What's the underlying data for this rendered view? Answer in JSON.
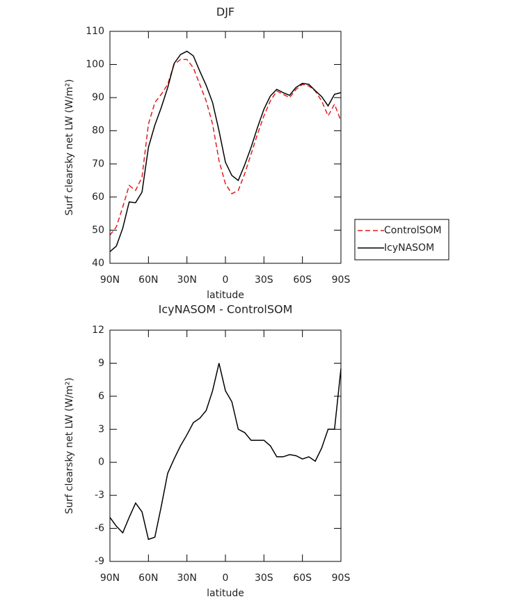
{
  "chart_data": [
    {
      "type": "line",
      "title": "DJF",
      "xlabel": "latitude",
      "ylabel": "Surf clearsky net LW (W/m²)",
      "x": [
        90,
        85,
        80,
        75,
        70,
        65,
        60,
        55,
        50,
        45,
        40,
        35,
        30,
        25,
        20,
        15,
        10,
        5,
        0,
        -5,
        -10,
        -15,
        -20,
        -25,
        -30,
        -35,
        -40,
        -45,
        -50,
        -55,
        -60,
        -65,
        -70,
        -75,
        -80,
        -85,
        -90
      ],
      "xlim": [
        90,
        -90
      ],
      "xticks": [
        {
          "value": 90,
          "label": "90N"
        },
        {
          "value": 60,
          "label": "60N"
        },
        {
          "value": 30,
          "label": "30N"
        },
        0,
        {
          "value": -30,
          "label": "30S"
        },
        {
          "value": -60,
          "label": "60S"
        },
        {
          "value": -90,
          "label": "90S"
        }
      ],
      "ylim": [
        40,
        110
      ],
      "yticks": [
        40,
        50,
        60,
        70,
        80,
        90,
        100,
        110
      ],
      "legend": "right",
      "series": [
        {
          "name": "ControlSOM",
          "color": "#e41a1c",
          "dash": true,
          "values": [
            48.5,
            51,
            57,
            63.5,
            62,
            66,
            82,
            88.5,
            91,
            94,
            100,
            101.5,
            101.5,
            99,
            94,
            89,
            82,
            71,
            64,
            61,
            62,
            67,
            73,
            79,
            84.5,
            89,
            92,
            91,
            90,
            92.5,
            94,
            93.5,
            92,
            89,
            84.5,
            88,
            83
          ]
        },
        {
          "name": "IcyNASOM",
          "color": "#000000",
          "dash": false,
          "values": [
            43.5,
            45.2,
            50.6,
            58.5,
            58.3,
            61.5,
            75,
            81.7,
            87,
            93,
            100.3,
            103,
            104,
            102.6,
            98,
            93.7,
            88.5,
            80,
            70.5,
            66.5,
            65,
            69.7,
            75,
            81,
            86.5,
            90.5,
            92.5,
            91.5,
            90.7,
            93.1,
            94.3,
            94,
            92.1,
            90.3,
            87.5,
            91,
            91.5
          ]
        }
      ]
    },
    {
      "type": "line",
      "title": "IcyNASOM - ControlSOM",
      "xlabel": "latitude",
      "ylabel": "Surf clearsky net LW (W/m²)",
      "x": [
        90,
        85,
        80,
        75,
        70,
        65,
        60,
        55,
        50,
        45,
        40,
        35,
        30,
        25,
        20,
        15,
        10,
        5,
        0,
        -5,
        -10,
        -15,
        -20,
        -25,
        -30,
        -35,
        -40,
        -45,
        -50,
        -55,
        -60,
        -65,
        -70,
        -75,
        -80,
        -85,
        -90
      ],
      "xlim": [
        90,
        -90
      ],
      "xticks": [
        {
          "value": 90,
          "label": "90N"
        },
        {
          "value": 60,
          "label": "60N"
        },
        {
          "value": 30,
          "label": "30N"
        },
        0,
        {
          "value": -30,
          "label": "30S"
        },
        {
          "value": -60,
          "label": "60S"
        },
        {
          "value": -90,
          "label": "90S"
        }
      ],
      "ylim": [
        -9,
        12
      ],
      "yticks": [
        -9,
        -6,
        -3,
        0,
        3,
        6,
        9,
        12
      ],
      "color": "#000000",
      "values": [
        -5,
        -5.8,
        -6.4,
        -5,
        -3.7,
        -4.5,
        -7,
        -6.8,
        -4,
        -1,
        0.3,
        1.5,
        2.5,
        3.6,
        4,
        4.7,
        6.5,
        9,
        6.5,
        5.5,
        3,
        2.7,
        2,
        2,
        2,
        1.5,
        0.5,
        0.5,
        0.7,
        0.6,
        0.3,
        0.5,
        0.1,
        1.3,
        3,
        3,
        8.5
      ]
    }
  ]
}
